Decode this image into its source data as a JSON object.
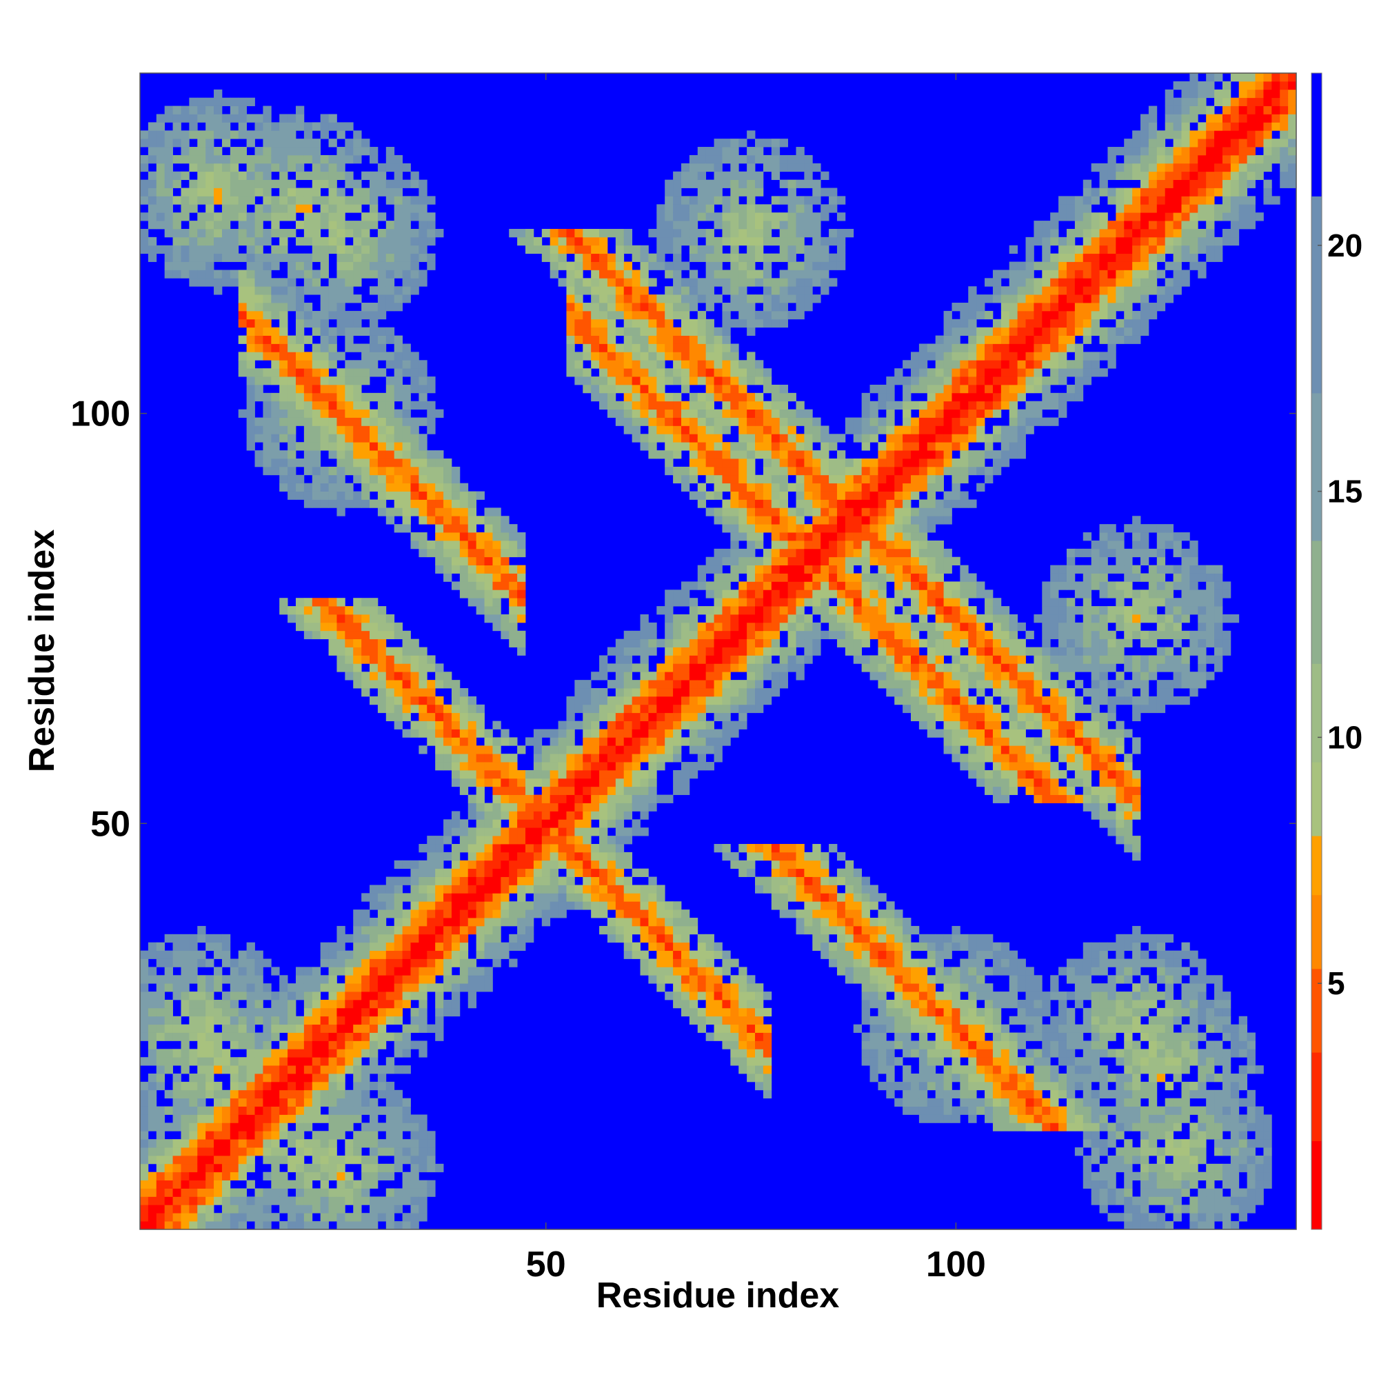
{
  "chart_data": {
    "type": "heatmap",
    "title": "",
    "xlabel": "Residue index",
    "ylabel": "Residue index",
    "n_residues": 141,
    "xlim": [
      1,
      141
    ],
    "ylim": [
      1,
      141
    ],
    "x_ticks": [
      50,
      100
    ],
    "y_ticks": [
      50,
      100
    ],
    "colorbar": {
      "range": [
        0,
        23.5
      ],
      "ticks": [
        5,
        10,
        15,
        20
      ],
      "stops": [
        {
          "max": 1.8,
          "color": "#ff0000"
        },
        {
          "max": 3.6,
          "color": "#ff2a00"
        },
        {
          "max": 5.3,
          "color": "#ff5500"
        },
        {
          "max": 6.8,
          "color": "#ff8800"
        },
        {
          "max": 8.0,
          "color": "#ffa000"
        },
        {
          "max": 9.5,
          "color": "#a8c27e"
        },
        {
          "max": 11.5,
          "color": "#9ebc86"
        },
        {
          "max": 14.0,
          "color": "#8fb08e"
        },
        {
          "max": 17.0,
          "color": "#7c9eaa"
        },
        {
          "max": 21.0,
          "color": "#6d8fb2"
        },
        {
          "max": 23.5,
          "color": "#0000ff"
        }
      ]
    },
    "features": {
      "diagonal_band": "distance increases with |i-j|; red near diagonal, orange, then grey-green up to ~8 residues away",
      "antiparallel_bands": [
        {
          "i_range": [
            15,
            45
          ],
          "j_range": [
            80,
            110
          ],
          "orientation": "anti-diagonal"
        },
        {
          "i_range": [
            45,
            75
          ],
          "j_range": [
            20,
            45
          ],
          "orientation": "anti-diagonal"
        },
        {
          "i_range": [
            55,
            85
          ],
          "j_range": [
            85,
            110
          ],
          "orientation": "anti-diagonal"
        },
        {
          "i_range": [
            85,
            120
          ],
          "j_range": [
            55,
            90
          ],
          "orientation": "anti-diagonal"
        }
      ],
      "contact_patches": [
        {
          "i_center": 10,
          "j_center": 127
        },
        {
          "i_center": 25,
          "j_center": 122
        },
        {
          "i_center": 25,
          "j_center": 100
        },
        {
          "i_center": 75,
          "j_center": 122
        },
        {
          "i_center": 100,
          "j_center": 25
        },
        {
          "i_center": 125,
          "j_center": 20
        },
        {
          "i_center": 122,
          "j_center": 75
        },
        {
          "i_center": 10,
          "j_center": 20
        },
        {
          "i_center": 25,
          "j_center": 8
        }
      ],
      "background_value": "> 23.5 (shown blue)"
    }
  }
}
